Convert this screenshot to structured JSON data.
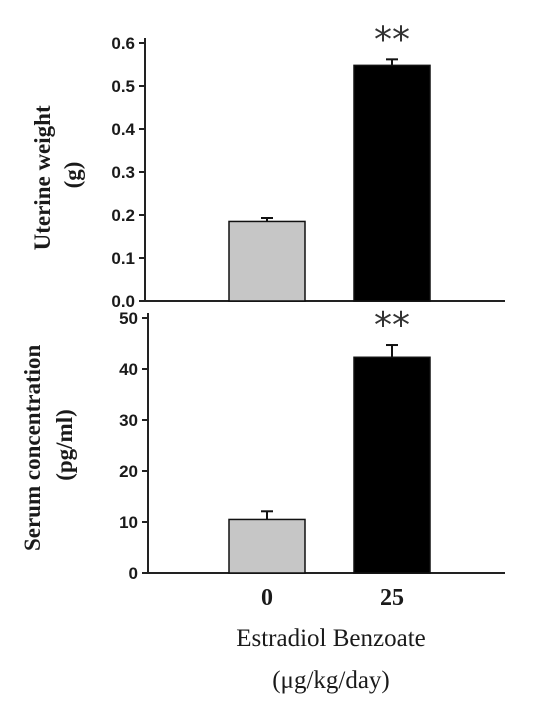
{
  "chart_data": [
    {
      "type": "bar",
      "categories": [
        "0",
        "25"
      ],
      "values": [
        0.185,
        0.548
      ],
      "errors": [
        0.008,
        0.014
      ],
      "ylabel_lines": [
        "Uterine weight",
        "(g)"
      ],
      "ylim": [
        0,
        0.6
      ],
      "yticks": [
        "0.0",
        "0.1",
        "0.2",
        "0.3",
        "0.4",
        "0.5",
        "0.6"
      ],
      "significance": [
        "",
        "**"
      ],
      "bar_colors": [
        "#c6c6c6",
        "#000000"
      ]
    },
    {
      "type": "bar",
      "categories": [
        "0",
        "25"
      ],
      "values": [
        10.5,
        42.3
      ],
      "errors": [
        1.6,
        2.4
      ],
      "ylabel_lines": [
        "Serum concentration",
        "(pg/ml)"
      ],
      "ylim": [
        0,
        50
      ],
      "yticks": [
        "0",
        "10",
        "20",
        "30",
        "40",
        "50"
      ],
      "significance": [
        "",
        "**"
      ],
      "bar_colors": [
        "#c6c6c6",
        "#000000"
      ]
    }
  ],
  "x_axis": {
    "category_labels": [
      "0",
      "25"
    ],
    "label_lines": [
      "Estradiol Benzoate",
      "(μg/kg/day)"
    ]
  }
}
